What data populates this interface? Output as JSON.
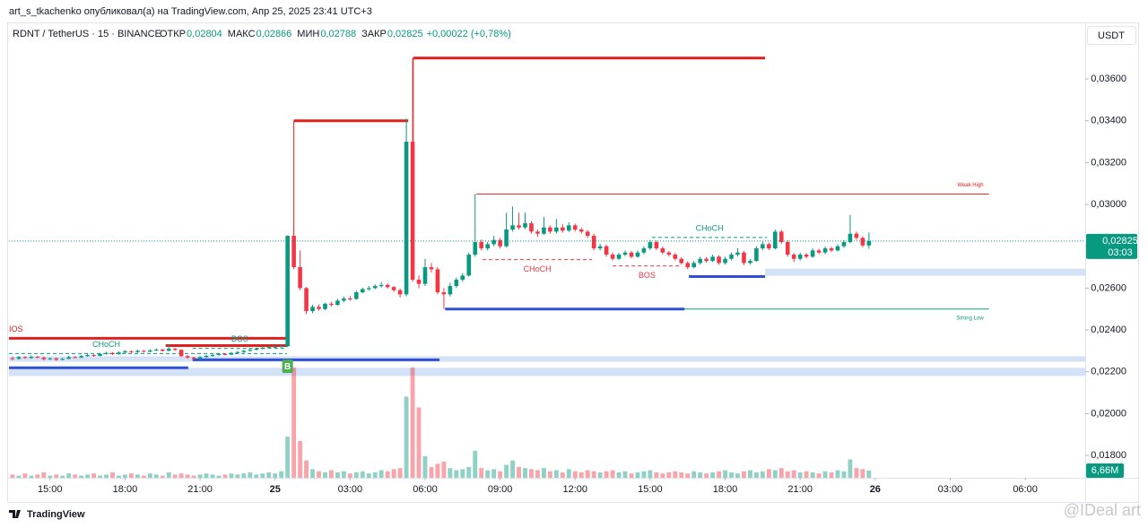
{
  "header": {
    "publisher": "art_s_tkachenko опубликовал(а) на TradingView.com, Апр 25, 2025 23:41 UTC+3",
    "brand": "TradingView",
    "watermark": "@IDeal art"
  },
  "chart_data": {
    "type": "candlestick",
    "legend": {
      "symbol": "RDNT / TetherUS · 15 · BINANCE",
      "fields": [
        "ОТКР",
        "МАКС",
        "МИН",
        "ЗАКР"
      ],
      "values": [
        "0,02804",
        "0,02866",
        "0,02788",
        "0,02825"
      ],
      "change": "+0,00022 (+0,78%)"
    },
    "currency": "USDT",
    "up_color": "#089981",
    "down_color": "#f23645",
    "xlim": [
      -0.57,
      171.6
    ],
    "xticks": [
      {
        "value": 6,
        "label": "15:00"
      },
      {
        "value": 18,
        "label": "18:00"
      },
      {
        "value": 30,
        "label": "21:00"
      },
      {
        "value": 42,
        "label": "25"
      },
      {
        "value": 54,
        "label": "03:00"
      },
      {
        "value": 66,
        "label": "06:00"
      },
      {
        "value": 78,
        "label": "09:00"
      },
      {
        "value": 90,
        "label": "12:00"
      },
      {
        "value": 102,
        "label": "15:00"
      },
      {
        "value": 114,
        "label": "18:00"
      },
      {
        "value": 126,
        "label": "21:00"
      },
      {
        "value": 138,
        "label": "26"
      },
      {
        "value": 150,
        "label": "03:00"
      },
      {
        "value": 162,
        "label": "06:00"
      }
    ],
    "ylim": [
      0.01693,
      0.03866
    ],
    "yticks": [
      {
        "value": 0.018,
        "label": "0,01800"
      },
      {
        "value": 0.02,
        "label": "0,02000"
      },
      {
        "value": 0.022,
        "label": "0,02200"
      },
      {
        "value": 0.024,
        "label": "0,02400"
      },
      {
        "value": 0.026,
        "label": "0,02600"
      },
      {
        "value": 0.028,
        "label": "0,02800"
      },
      {
        "value": 0.03,
        "label": "0,03000"
      },
      {
        "value": 0.032,
        "label": "0,03200"
      },
      {
        "value": 0.034,
        "label": "0,03400"
      },
      {
        "value": 0.036,
        "label": "0,03600"
      }
    ],
    "grid": false,
    "vlim": [
      0,
      420
    ],
    "open": [
      0.02265,
      0.02262,
      0.0227,
      0.02266,
      0.02272,
      0.02268,
      0.0226,
      0.02264,
      0.02258,
      0.02262,
      0.0227,
      0.02268,
      0.02275,
      0.0228,
      0.02276,
      0.02285,
      0.0229,
      0.02284,
      0.02292,
      0.02298,
      0.02294,
      0.023,
      0.02296,
      0.02302,
      0.02306,
      0.023,
      0.0231,
      0.02305,
      0.02275,
      0.02268,
      0.02262,
      0.0227,
      0.02276,
      0.0228,
      0.02285,
      0.02282,
      0.0229,
      0.02294,
      0.023,
      0.02305,
      0.0231,
      0.02315,
      0.02318,
      0.0232,
      0.02322,
      0.0285,
      0.027,
      0.026,
      0.0249,
      0.0251,
      0.025,
      0.02525,
      0.0252,
      0.0254,
      0.0255,
      0.02548,
      0.0258,
      0.02595,
      0.026,
      0.0261,
      0.02615,
      0.02605,
      0.0259,
      0.0257,
      0.033,
      0.0264,
      0.0262,
      0.027,
      0.0269,
      0.0258,
      0.0257,
      0.0261,
      0.0264,
      0.0266,
      0.0276,
      0.0282,
      0.0279,
      0.0281,
      0.0283,
      0.028,
      0.0288,
      0.029,
      0.0289,
      0.0291,
      0.0287,
      0.0286,
      0.0289,
      0.0287,
      0.0289,
      0.02875,
      0.029,
      0.0288,
      0.0287,
      0.0285,
      0.0279,
      0.028,
      0.0276,
      0.0274,
      0.0276,
      0.0277,
      0.0275,
      0.0277,
      0.0279,
      0.0282,
      0.0279,
      0.0277,
      0.0276,
      0.0274,
      0.0272,
      0.027,
      0.0272,
      0.0274,
      0.0273,
      0.0275,
      0.0272,
      0.0274,
      0.0276,
      0.0277,
      0.0272,
      0.0273,
      0.0279,
      0.0281,
      0.0279,
      0.0287,
      0.0282,
      0.0276,
      0.0274,
      0.0276,
      0.0275,
      0.0278,
      0.0277,
      0.0279,
      0.0278,
      0.028,
      0.0282,
      0.0286,
      0.0284,
      0.02804
    ],
    "high": [
      0.02272,
      0.02276,
      0.02275,
      0.02278,
      0.02276,
      0.02272,
      0.02268,
      0.02268,
      0.02266,
      0.02276,
      0.02275,
      0.0228,
      0.02285,
      0.02284,
      0.0229,
      0.02296,
      0.02294,
      0.02297,
      0.02304,
      0.02302,
      0.02306,
      0.02304,
      0.02308,
      0.02312,
      0.0231,
      0.0233,
      0.02314,
      0.02308,
      0.0228,
      0.02272,
      0.02275,
      0.0228,
      0.02285,
      0.0229,
      0.02289,
      0.02295,
      0.02299,
      0.02305,
      0.0231,
      0.02315,
      0.0232,
      0.02323,
      0.02325,
      0.02328,
      0.02852,
      0.034,
      0.0278,
      0.02605,
      0.0252,
      0.02522,
      0.0253,
      0.02535,
      0.02548,
      0.0256,
      0.02562,
      0.02588,
      0.02602,
      0.0261,
      0.02618,
      0.02628,
      0.02622,
      0.0261,
      0.02598,
      0.0341,
      0.037,
      0.0266,
      0.0274,
      0.0272,
      0.027,
      0.026,
      0.02625,
      0.0265,
      0.02672,
      0.0277,
      0.0305,
      0.02832,
      0.02822,
      0.0285,
      0.0284,
      0.0296,
      0.0299,
      0.0296,
      0.0296,
      0.0292,
      0.0288,
      0.0294,
      0.029,
      0.0293,
      0.02905,
      0.02915,
      0.02908,
      0.0289,
      0.02878,
      0.0286,
      0.02812,
      0.02808,
      0.0277,
      0.02768,
      0.0278,
      0.02778,
      0.0278,
      0.028,
      0.0283,
      0.02828,
      0.02798,
      0.02778,
      0.02768,
      0.02748,
      0.02728,
      0.0273,
      0.0275,
      0.02748,
      0.0276,
      0.02758,
      0.0275,
      0.0277,
      0.0279,
      0.02778,
      0.0274,
      0.028,
      0.02822,
      0.02818,
      0.0288,
      0.02878,
      0.02828,
      0.02768,
      0.0277,
      0.02768,
      0.0279,
      0.02788,
      0.028,
      0.02798,
      0.0281,
      0.0283,
      0.0295,
      0.0287,
      0.02848,
      0.02866
    ],
    "low": [
      0.02255,
      0.02258,
      0.02262,
      0.02262,
      0.02264,
      0.02254,
      0.02256,
      0.02252,
      0.02254,
      0.0226,
      0.02264,
      0.02265,
      0.02272,
      0.02272,
      0.02274,
      0.02282,
      0.0228,
      0.02281,
      0.0229,
      0.0229,
      0.02291,
      0.02292,
      0.02293,
      0.02299,
      0.02296,
      0.02298,
      0.023,
      0.0227,
      0.02262,
      0.02256,
      0.02258,
      0.02266,
      0.02272,
      0.02277,
      0.02278,
      0.02279,
      0.02287,
      0.02291,
      0.02297,
      0.02302,
      0.02307,
      0.02311,
      0.02314,
      0.02316,
      0.02318,
      0.0269,
      0.0259,
      0.02475,
      0.0248,
      0.02492,
      0.02495,
      0.02512,
      0.02515,
      0.02532,
      0.0254,
      0.02545,
      0.02575,
      0.02588,
      0.02595,
      0.02602,
      0.02598,
      0.02582,
      0.02555,
      0.0256,
      0.0263,
      0.026,
      0.0261,
      0.02675,
      0.0257,
      0.025,
      0.0256,
      0.026,
      0.0263,
      0.02655,
      0.0275,
      0.0278,
      0.0278,
      0.028,
      0.0279,
      0.02795,
      0.0287,
      0.0288,
      0.02882,
      0.0286,
      0.02845,
      0.02855,
      0.0286,
      0.0286,
      0.02865,
      0.02868,
      0.0287,
      0.0286,
      0.0284,
      0.0278,
      0.0278,
      0.0275,
      0.02732,
      0.02735,
      0.02752,
      0.02742,
      0.02745,
      0.02762,
      0.02782,
      0.02782,
      0.02762,
      0.02752,
      0.02732,
      0.02712,
      0.0269,
      0.02695,
      0.02712,
      0.02722,
      0.02725,
      0.02712,
      0.02712,
      0.02732,
      0.02752,
      0.0271,
      0.02712,
      0.02725,
      0.02782,
      0.02782,
      0.02785,
      0.02812,
      0.0275,
      0.02725,
      0.02732,
      0.02742,
      0.02745,
      0.02762,
      0.02762,
      0.02772,
      0.02775,
      0.02792,
      0.02815,
      0.0283,
      0.02795,
      0.02788
    ],
    "close": [
      0.02262,
      0.0227,
      0.02266,
      0.02272,
      0.02268,
      0.0226,
      0.02264,
      0.02258,
      0.02262,
      0.0227,
      0.02268,
      0.02275,
      0.0228,
      0.02276,
      0.02285,
      0.0229,
      0.02284,
      0.02292,
      0.02298,
      0.02294,
      0.023,
      0.02296,
      0.02302,
      0.02306,
      0.023,
      0.0231,
      0.02305,
      0.02275,
      0.02268,
      0.02262,
      0.0227,
      0.02276,
      0.0228,
      0.02285,
      0.02282,
      0.0229,
      0.02294,
      0.023,
      0.02305,
      0.0231,
      0.02315,
      0.02318,
      0.0232,
      0.02322,
      0.0285,
      0.027,
      0.026,
      0.0249,
      0.0251,
      0.025,
      0.02525,
      0.0252,
      0.0254,
      0.0255,
      0.02548,
      0.0258,
      0.02595,
      0.026,
      0.0261,
      0.02615,
      0.02605,
      0.0259,
      0.0257,
      0.033,
      0.0264,
      0.0262,
      0.027,
      0.0269,
      0.0258,
      0.0257,
      0.0261,
      0.0264,
      0.0266,
      0.0276,
      0.0282,
      0.0279,
      0.0281,
      0.0283,
      0.028,
      0.0288,
      0.029,
      0.0289,
      0.0291,
      0.0287,
      0.0286,
      0.0289,
      0.0287,
      0.0289,
      0.02875,
      0.029,
      0.0288,
      0.0287,
      0.0285,
      0.0279,
      0.028,
      0.0276,
      0.0274,
      0.0276,
      0.0277,
      0.0275,
      0.0277,
      0.0279,
      0.0282,
      0.0279,
      0.0277,
      0.0276,
      0.0274,
      0.0272,
      0.027,
      0.0272,
      0.0274,
      0.0273,
      0.0275,
      0.0272,
      0.0274,
      0.0276,
      0.0277,
      0.0272,
      0.0273,
      0.0279,
      0.0281,
      0.0279,
      0.0287,
      0.0282,
      0.0276,
      0.0274,
      0.0276,
      0.0275,
      0.0278,
      0.0277,
      0.0279,
      0.0278,
      0.028,
      0.0282,
      0.0286,
      0.0284,
      0.02804,
      0.02825
    ],
    "volume": [
      3,
      2,
      4,
      2,
      3,
      5,
      2,
      3,
      2,
      4,
      3,
      2,
      3,
      4,
      2,
      3,
      5,
      2,
      3,
      4,
      3,
      2,
      4,
      3,
      2,
      5,
      3,
      4,
      3,
      2,
      3,
      4,
      3,
      2,
      3,
      4,
      3,
      4,
      5,
      3,
      4,
      5,
      4,
      6,
      38,
      102,
      34,
      16,
      8,
      6,
      5,
      7,
      5,
      6,
      4,
      5,
      6,
      4,
      5,
      7,
      6,
      8,
      9,
      75,
      102,
      65,
      20,
      10,
      13,
      15,
      9,
      7,
      8,
      10,
      25,
      9,
      7,
      8,
      6,
      12,
      16,
      10,
      9,
      8,
      7,
      9,
      6,
      7,
      5,
      8,
      6,
      5,
      7,
      6,
      5,
      6,
      7,
      5,
      6,
      4,
      5,
      6,
      7,
      5,
      4,
      5,
      6,
      5,
      4,
      6,
      5,
      4,
      5,
      6,
      7,
      5,
      4,
      6,
      7,
      5,
      6,
      8,
      7,
      9,
      6,
      7,
      5,
      6,
      5,
      4,
      6,
      5,
      7,
      6,
      17,
      9,
      8,
      6.66
    ],
    "volume_last_label": "6,66M",
    "last_price_label": "0,02825",
    "countdown": "03:03",
    "zones": [
      {
        "from": 0.02693,
        "to": 0.02659,
        "x": [
          120.4,
          171.6
        ]
      },
      {
        "from": 0.02274,
        "to": 0.02248,
        "x": [
          -0.57,
          171.6
        ]
      },
      {
        "from": 0.02219,
        "to": 0.0218,
        "x": [
          -0.57,
          171.6
        ]
      }
    ],
    "lines": [
      {
        "y": 0.0236,
        "x": [
          -0.57,
          43.9
        ],
        "color": "#e0201f",
        "style": "thick",
        "label": "IOS",
        "label_pos": "start-above"
      },
      {
        "y": 0.02325,
        "x": [
          24.5,
          43.9
        ],
        "color": "#e0201f",
        "style": "thick"
      },
      {
        "y": 0.02287,
        "x": [
          -0.57,
          43.9
        ],
        "color": "#089981",
        "style": "dashed",
        "label": "CHoCH",
        "label_pos": "left-above"
      },
      {
        "y": 0.02312,
        "x": [
          28.8,
          43.9
        ],
        "color": "#089981",
        "style": "dashed",
        "label": "BOS",
        "label_pos": "mid-above"
      },
      {
        "y": 0.034,
        "x": [
          45,
          63.3
        ],
        "color": "#e0201f",
        "style": "thick"
      },
      {
        "y": 0.037,
        "x": [
          64.1,
          120.4
        ],
        "color": "#e0201f",
        "style": "thick"
      },
      {
        "y": 0.0305,
        "x": [
          74.2,
          156.2
        ],
        "color": "#e0201f",
        "style": "thin",
        "label": "Weak High",
        "label_pos": "end-above"
      },
      {
        "y": 0.025,
        "x": [
          69.2,
          107.5
        ],
        "color": "#2f50d6",
        "style": "thick"
      },
      {
        "y": 0.025,
        "x": [
          107.5,
          156.2
        ],
        "color": "#089981",
        "style": "thin",
        "label": "Strong Low",
        "label_pos": "end-below"
      },
      {
        "y": 0.02257,
        "x": [
          28.8,
          68.3
        ],
        "color": "#2f50d6",
        "style": "thick"
      },
      {
        "y": 0.02219,
        "x": [
          -0.57,
          28.1
        ],
        "color": "#2f50d6",
        "style": "thick"
      },
      {
        "y": 0.02655,
        "x": [
          108.2,
          120.4
        ],
        "color": "#2f50d6",
        "style": "thick"
      },
      {
        "y": 0.02736,
        "x": [
          75.2,
          92.7
        ],
        "color": "#f23645",
        "style": "dashed",
        "label": "CHoCH",
        "label_pos": "mid-below"
      },
      {
        "y": 0.02706,
        "x": [
          96,
          107
        ],
        "color": "#f23645",
        "style": "dashed",
        "label": "BOS",
        "label_pos": "mid-below"
      },
      {
        "y": 0.02842,
        "x": [
          102.3,
          120.7
        ],
        "color": "#089981",
        "style": "dashed",
        "label": "CHoCH",
        "label_pos": "mid-above"
      }
    ],
    "markers": [
      {
        "x": 44,
        "text": "B"
      }
    ]
  }
}
